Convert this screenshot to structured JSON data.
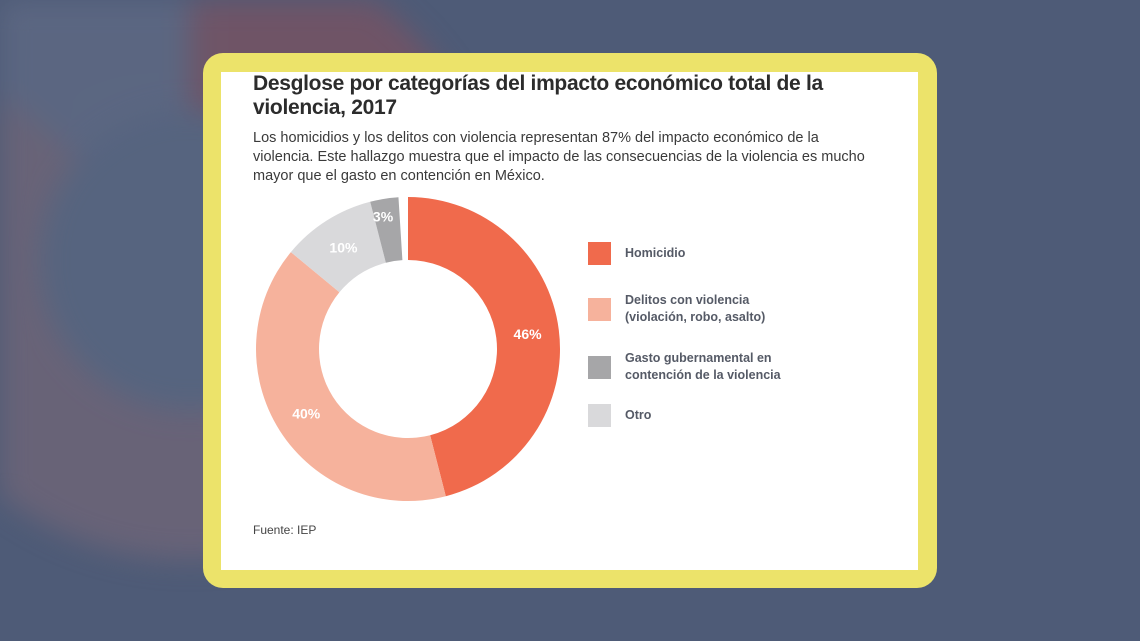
{
  "chart_data": {
    "type": "pie",
    "variant": "donut",
    "title": "Desglose por categorías del impacto económico total de la violencia, 2017",
    "subtitle": "Los homicidios y los delitos con violencia representan 87% del impacto económico de la violencia. Este hallazgo muestra que el impacto de las consecuencias de la violencia es mucho mayor que el gasto en contención en México.",
    "legend_position": "right",
    "slices": [
      {
        "name": "Homicidio",
        "value": 46,
        "label": "46%",
        "color": "#f06a4c",
        "label_color": "#ffffff"
      },
      {
        "name": "Delitos con violencia (violación, robo, asalto)",
        "value": 40,
        "label": "40%",
        "color": "#f6b29c",
        "label_color": "#ffffff"
      },
      {
        "name": "Otro",
        "value": 10,
        "label": "10%",
        "color": "#d9d9db",
        "label_color": "#ffffff"
      },
      {
        "name": "Gasto gubernamental en contención de la violencia",
        "value": 3,
        "label": "3%",
        "color": "#a6a6a8",
        "label_color": "#ffffff"
      }
    ],
    "legend": [
      {
        "label": "Homicidio",
        "color": "#f06a4c"
      },
      {
        "label": "Delitos con violencia (violación, robo, asalto)",
        "color": "#f6b29c"
      },
      {
        "label": "Gasto gubernamental en contención de la violencia",
        "color": "#a6a6a8"
      },
      {
        "label": "Otro",
        "color": "#d9d9db"
      }
    ],
    "source": "Fuente: IEP"
  },
  "colors": {
    "frame": "#ece36a",
    "background": "#4e5b77"
  }
}
